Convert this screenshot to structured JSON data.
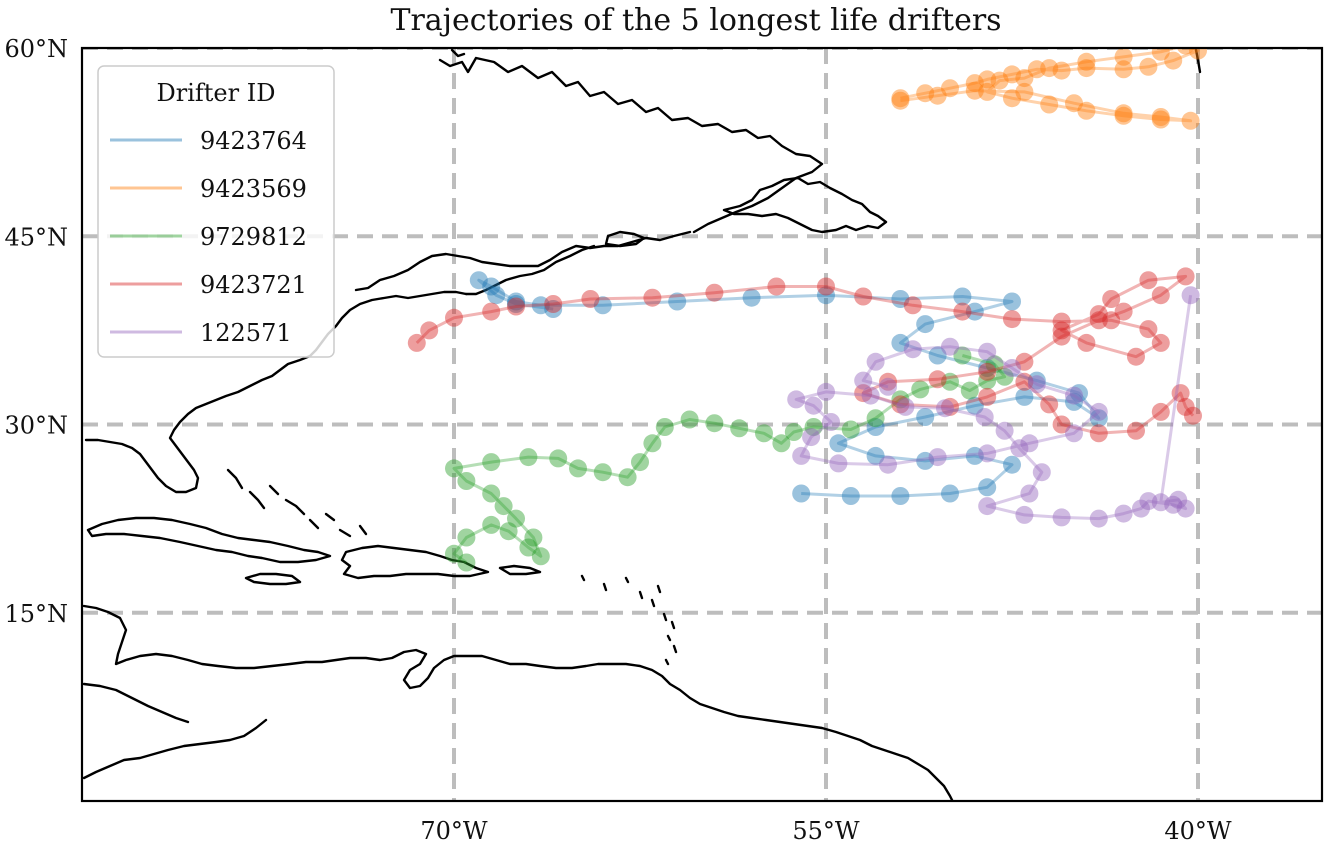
{
  "figure": {
    "title": "Trajectories of the 5 longest life drifters"
  },
  "map_data": {
    "type": "geographic-trajectories",
    "projection": "PlateCarree",
    "extent": {
      "lon": [
        -85,
        -35
      ],
      "lat": [
        0,
        60
      ]
    },
    "gridlines": {
      "style": "dashed",
      "color": "#bdbdbd",
      "lon_ticks": [
        -70,
        -55,
        -40
      ],
      "lat_ticks": [
        15,
        30,
        45,
        60
      ],
      "lon_labels": [
        "70°W",
        "55°W",
        "40°W"
      ],
      "lat_labels": [
        "15°N",
        "30°N",
        "45°N",
        "60°N"
      ]
    },
    "legend": {
      "title": "Drifter ID",
      "placement": "upper-left"
    },
    "coastline_color": "#000000",
    "series": [
      {
        "name": "9423764",
        "color": "#1f77b4",
        "track": [
          [
            -56,
            24.5
          ],
          [
            -54,
            24.3
          ],
          [
            -52,
            24.3
          ],
          [
            -50,
            24.5
          ],
          [
            -48.5,
            25
          ],
          [
            -47.5,
            26.8
          ],
          [
            -49,
            27.5
          ],
          [
            -51,
            27.1
          ],
          [
            -53,
            27.5
          ],
          [
            -54.5,
            28.5
          ],
          [
            -53,
            29.8
          ],
          [
            -51,
            30.6
          ],
          [
            -49,
            31.5
          ],
          [
            -47,
            32.2
          ],
          [
            -45,
            31.8
          ],
          [
            -44,
            30.5
          ],
          [
            -44.8,
            32.5
          ],
          [
            -46.5,
            33.5
          ],
          [
            -48.5,
            34.5
          ],
          [
            -50.5,
            35.5
          ],
          [
            -52,
            36.5
          ],
          [
            -51,
            38
          ],
          [
            -49,
            39
          ],
          [
            -47.5,
            39.8
          ],
          [
            -49.5,
            40.2
          ],
          [
            -52,
            40
          ],
          [
            -55,
            40.3
          ],
          [
            -58,
            40.1
          ],
          [
            -61,
            39.8
          ],
          [
            -64,
            39.5
          ],
          [
            -66.5,
            39.5
          ],
          [
            -67.5,
            39.8
          ],
          [
            -68.5,
            41
          ],
          [
            -69,
            41.5
          ],
          [
            -68.3,
            40.3
          ],
          [
            -67.5,
            39.6
          ],
          [
            -66,
            39.2
          ]
        ]
      },
      {
        "name": "9423569",
        "color": "#ff7f0e",
        "track": [
          [
            -52,
            56
          ],
          [
            -51,
            56.4
          ],
          [
            -50,
            56.8
          ],
          [
            -49,
            57.2
          ],
          [
            -48.5,
            57.5
          ],
          [
            -47.5,
            57.9
          ],
          [
            -46.5,
            58.3
          ],
          [
            -45.5,
            58.2
          ],
          [
            -44.5,
            58.4
          ],
          [
            -43,
            58.3
          ],
          [
            -42,
            58.5
          ],
          [
            -41,
            59
          ],
          [
            -40,
            59.8
          ],
          [
            -40.5,
            60.2
          ],
          [
            -41.5,
            59.7
          ],
          [
            -43,
            59.3
          ],
          [
            -44.5,
            58.9
          ],
          [
            -46,
            58.4
          ],
          [
            -47,
            57.6
          ],
          [
            -48,
            57.4
          ],
          [
            -48.5,
            56.5
          ],
          [
            -47.5,
            56
          ],
          [
            -46,
            55.5
          ],
          [
            -44.5,
            55
          ],
          [
            -43,
            54.6
          ],
          [
            -41.5,
            54.3
          ],
          [
            -40.3,
            54.2
          ],
          [
            -41.5,
            54.5
          ],
          [
            -43,
            54.8
          ],
          [
            -45,
            55.6
          ],
          [
            -47,
            56.5
          ],
          [
            -49,
            56.6
          ],
          [
            -50.5,
            56.2
          ],
          [
            -52,
            55.8
          ]
        ]
      },
      {
        "name": "9729812",
        "color": "#2ca02c",
        "track": [
          [
            -69.5,
            19
          ],
          [
            -70,
            19.7
          ],
          [
            -69.5,
            21
          ],
          [
            -68.5,
            22
          ],
          [
            -67.8,
            21.5
          ],
          [
            -67,
            20.2
          ],
          [
            -66.5,
            19.5
          ],
          [
            -66.8,
            21
          ],
          [
            -67.5,
            22.5
          ],
          [
            -68,
            23.5
          ],
          [
            -68.5,
            24.5
          ],
          [
            -69.5,
            25.5
          ],
          [
            -70,
            26.5
          ],
          [
            -68.5,
            27
          ],
          [
            -67,
            27.4
          ],
          [
            -65.8,
            27.3
          ],
          [
            -65,
            26.5
          ],
          [
            -64,
            26.2
          ],
          [
            -63,
            25.8
          ],
          [
            -62.5,
            27
          ],
          [
            -62,
            28.5
          ],
          [
            -61.5,
            29.8
          ],
          [
            -60.5,
            30.4
          ],
          [
            -59.5,
            30.1
          ],
          [
            -58.5,
            29.7
          ],
          [
            -57.5,
            29.3
          ],
          [
            -56.8,
            28.5
          ],
          [
            -56.3,
            29.4
          ],
          [
            -55.5,
            29.8
          ],
          [
            -54,
            29.6
          ],
          [
            -53,
            30.5
          ],
          [
            -52,
            32
          ],
          [
            -51.2,
            32.8
          ],
          [
            -50,
            33.4
          ],
          [
            -49.2,
            32.7
          ],
          [
            -48.5,
            33.5
          ],
          [
            -47.8,
            33.8
          ],
          [
            -48.2,
            34.8
          ],
          [
            -49.5,
            35.5
          ]
        ]
      },
      {
        "name": "9423721",
        "color": "#d62728",
        "track": [
          [
            -71.5,
            36.5
          ],
          [
            -71,
            37.5
          ],
          [
            -70,
            38.5
          ],
          [
            -68.5,
            39
          ],
          [
            -67.5,
            39.4
          ],
          [
            -66,
            39.6
          ],
          [
            -64.5,
            40
          ],
          [
            -62,
            40.1
          ],
          [
            -59.5,
            40.5
          ],
          [
            -57,
            41
          ],
          [
            -55,
            41
          ],
          [
            -53.5,
            40.2
          ],
          [
            -51.5,
            39.5
          ],
          [
            -49.5,
            39
          ],
          [
            -47.5,
            38.4
          ],
          [
            -45.5,
            38.2
          ],
          [
            -43.5,
            38.3
          ],
          [
            -42,
            37.6
          ],
          [
            -41.5,
            36.5
          ],
          [
            -42.5,
            35.4
          ],
          [
            -44.5,
            36.5
          ],
          [
            -45.5,
            37.5
          ],
          [
            -44,
            38.8
          ],
          [
            -43.5,
            40
          ],
          [
            -42,
            41.5
          ],
          [
            -40.5,
            41.8
          ],
          [
            -41.5,
            40.3
          ],
          [
            -43,
            39
          ],
          [
            -44,
            38.3
          ],
          [
            -45.5,
            37
          ],
          [
            -47,
            35
          ],
          [
            -48.5,
            34.2
          ],
          [
            -50.5,
            33.6
          ],
          [
            -52.5,
            33.4
          ],
          [
            -53.5,
            32.5
          ],
          [
            -52,
            31.6
          ],
          [
            -50,
            31.4
          ],
          [
            -48.5,
            32.2
          ],
          [
            -47,
            33.4
          ],
          [
            -46,
            31.6
          ],
          [
            -45.5,
            30
          ],
          [
            -44,
            29.3
          ],
          [
            -42.5,
            29.5
          ],
          [
            -41.5,
            31
          ],
          [
            -40.7,
            32.5
          ],
          [
            -40.5,
            31.4
          ],
          [
            -40.2,
            30.7
          ]
        ]
      },
      {
        "name": "122571",
        "color": "#9467bd",
        "track": [
          [
            -52.5,
            33
          ],
          [
            -53.5,
            33.5
          ],
          [
            -53,
            35
          ],
          [
            -51.5,
            36
          ],
          [
            -50,
            36.2
          ],
          [
            -48.5,
            35.8
          ],
          [
            -47.5,
            34.5
          ],
          [
            -46.5,
            33.2
          ],
          [
            -45,
            32.3
          ],
          [
            -44,
            31
          ],
          [
            -45,
            29.3
          ],
          [
            -46.8,
            28.5
          ],
          [
            -48.5,
            27.7
          ],
          [
            -50.5,
            27.4
          ],
          [
            -52.5,
            26.8
          ],
          [
            -54.5,
            26.9
          ],
          [
            -56,
            27.5
          ],
          [
            -55.6,
            29
          ],
          [
            -54.8,
            30.2
          ],
          [
            -55.5,
            31.5
          ],
          [
            -56.2,
            32
          ],
          [
            -55,
            32.6
          ],
          [
            -53.2,
            32.3
          ],
          [
            -51.8,
            31.4
          ],
          [
            -50.2,
            31.3
          ],
          [
            -48.6,
            30.6
          ],
          [
            -47.8,
            29.5
          ],
          [
            -47.2,
            28.1
          ],
          [
            -46.3,
            26.2
          ],
          [
            -46.8,
            24.5
          ],
          [
            -48.5,
            23.5
          ],
          [
            -47,
            22.8
          ],
          [
            -45.5,
            22.6
          ],
          [
            -44,
            22.5
          ],
          [
            -43,
            22.9
          ],
          [
            -42.3,
            23.3
          ],
          [
            -42,
            23.9
          ],
          [
            -41,
            23.6
          ],
          [
            -40.5,
            23.3
          ],
          [
            -40.8,
            24
          ],
          [
            -41.5,
            23.8
          ],
          [
            -40.3,
            40.3
          ]
        ]
      }
    ]
  }
}
